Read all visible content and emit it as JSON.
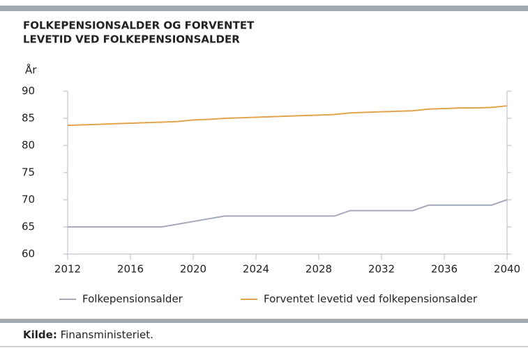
{
  "chart_data": {
    "type": "line",
    "title": [
      "FOLKEPENSIONSALDER OG FORVENTET",
      "LEVETID VED FOLKEPENSIONSALDER"
    ],
    "ylabel": "År",
    "x": [
      2012,
      2013,
      2014,
      2015,
      2016,
      2017,
      2018,
      2019,
      2020,
      2021,
      2022,
      2023,
      2024,
      2025,
      2026,
      2027,
      2028,
      2029,
      2030,
      2031,
      2032,
      2033,
      2034,
      2035,
      2036,
      2037,
      2038,
      2039,
      2040
    ],
    "series": [
      {
        "name": "Folkepensionsalder",
        "color": "#a3a9b8",
        "values": [
          65,
          65,
          65,
          65,
          65,
          65,
          65,
          65.5,
          66,
          66.5,
          67,
          67,
          67,
          67,
          67,
          67,
          67,
          67,
          68,
          68,
          68,
          68,
          68,
          69,
          69,
          69,
          69,
          69,
          70
        ]
      },
      {
        "name": "Forventet levetid ved folkepensionsalder",
        "color": "#e2a44a",
        "values": [
          83.7,
          83.8,
          83.9,
          84.0,
          84.1,
          84.2,
          84.3,
          84.4,
          84.7,
          84.8,
          85.0,
          85.1,
          85.2,
          85.3,
          85.4,
          85.5,
          85.6,
          85.7,
          86.0,
          86.1,
          86.2,
          86.3,
          86.4,
          86.7,
          86.8,
          86.9,
          86.9,
          87.0,
          87.3
        ]
      }
    ],
    "xlim": [
      2012,
      2040
    ],
    "xticks": [
      2012,
      2016,
      2020,
      2024,
      2028,
      2032,
      2036,
      2040
    ],
    "ylim": [
      60,
      90
    ],
    "yticks": [
      60,
      65,
      70,
      75,
      80,
      85,
      90
    ],
    "grid": false,
    "source": {
      "label": "Kilde:",
      "text": "Finansministeriet."
    }
  }
}
